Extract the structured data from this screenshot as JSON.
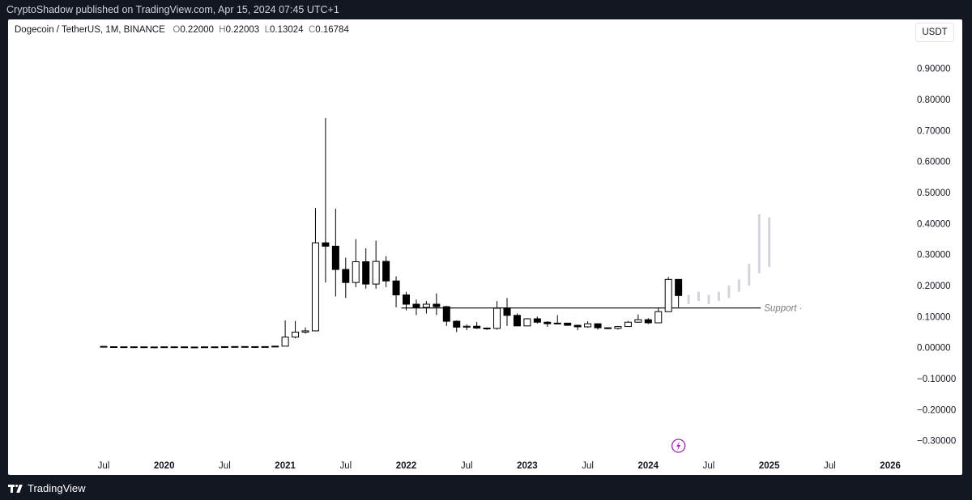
{
  "header": {
    "published_text": "CryptoShadow published on TradingView.com, Apr 15, 2024 07:45 UTC+1"
  },
  "legend": {
    "symbol": "Dogecoin / TetherUS, 1M, BINANCE",
    "open_label": "O",
    "open_value": "0.22000",
    "high_label": "H",
    "high_value": "0.22003",
    "low_label": "L",
    "low_value": "0.13024",
    "close_label": "C",
    "close_value": "0.16784"
  },
  "currency_button": "USDT",
  "footer": {
    "brand": "TradingView"
  },
  "colors": {
    "up_candle": "#ffffff",
    "down_candle": "#000000",
    "projection": "#d1d4dc",
    "support_line": "#131722",
    "event_icon": "#9c27b0"
  },
  "chart_data": {
    "type": "candlestick",
    "title": "",
    "ylim": [
      -0.34,
      0.98
    ],
    "y_ticks": [
      "0.90000",
      "0.80000",
      "0.70000",
      "0.60000",
      "0.50000",
      "0.40000",
      "0.30000",
      "0.20000",
      "0.10000",
      "0.00000",
      "−0.10000",
      "−0.20000",
      "−0.30000"
    ],
    "y_tick_values": [
      0.9,
      0.8,
      0.7,
      0.6,
      0.5,
      0.4,
      0.3,
      0.2,
      0.1,
      0.0,
      -0.1,
      -0.2,
      -0.3
    ],
    "x_ticks": [
      {
        "label": "Jul",
        "month": "2019-07",
        "bold": false
      },
      {
        "label": "2020",
        "month": "2020-01",
        "bold": true
      },
      {
        "label": "Jul",
        "month": "2020-07",
        "bold": false
      },
      {
        "label": "2021",
        "month": "2021-01",
        "bold": true
      },
      {
        "label": "Jul",
        "month": "2021-07",
        "bold": false
      },
      {
        "label": "2022",
        "month": "2022-01",
        "bold": true
      },
      {
        "label": "Jul",
        "month": "2022-07",
        "bold": false
      },
      {
        "label": "2023",
        "month": "2023-01",
        "bold": true
      },
      {
        "label": "Jul",
        "month": "2023-07",
        "bold": false
      },
      {
        "label": "2024",
        "month": "2024-01",
        "bold": true
      },
      {
        "label": "Jul",
        "month": "2024-07",
        "bold": false
      },
      {
        "label": "2025",
        "month": "2025-01",
        "bold": true
      },
      {
        "label": "Jul",
        "month": "2025-07",
        "bold": false
      },
      {
        "label": "2026",
        "month": "2026-01",
        "bold": true
      }
    ],
    "candles": [
      {
        "month": "2019-07",
        "o": 0.004,
        "h": 0.0045,
        "l": 0.003,
        "c": 0.003
      },
      {
        "month": "2019-08",
        "o": 0.003,
        "h": 0.0032,
        "l": 0.0025,
        "c": 0.0027
      },
      {
        "month": "2019-09",
        "o": 0.0027,
        "h": 0.0029,
        "l": 0.0022,
        "c": 0.0024
      },
      {
        "month": "2019-10",
        "o": 0.0024,
        "h": 0.003,
        "l": 0.0023,
        "c": 0.0026
      },
      {
        "month": "2019-11",
        "o": 0.0026,
        "h": 0.0028,
        "l": 0.0021,
        "c": 0.0022
      },
      {
        "month": "2019-12",
        "o": 0.0022,
        "h": 0.0024,
        "l": 0.0019,
        "c": 0.002
      },
      {
        "month": "2020-01",
        "o": 0.002,
        "h": 0.0028,
        "l": 0.002,
        "c": 0.0026
      },
      {
        "month": "2020-02",
        "o": 0.0026,
        "h": 0.0033,
        "l": 0.0024,
        "c": 0.0025
      },
      {
        "month": "2020-03",
        "o": 0.0025,
        "h": 0.0026,
        "l": 0.0014,
        "c": 0.0019
      },
      {
        "month": "2020-04",
        "o": 0.0019,
        "h": 0.0022,
        "l": 0.0017,
        "c": 0.002
      },
      {
        "month": "2020-05",
        "o": 0.002,
        "h": 0.0026,
        "l": 0.0019,
        "c": 0.0025
      },
      {
        "month": "2020-06",
        "o": 0.0025,
        "h": 0.0026,
        "l": 0.0022,
        "c": 0.0024
      },
      {
        "month": "2020-07",
        "o": 0.0024,
        "h": 0.0046,
        "l": 0.0023,
        "c": 0.0031
      },
      {
        "month": "2020-08",
        "o": 0.0031,
        "h": 0.004,
        "l": 0.0029,
        "c": 0.0035
      },
      {
        "month": "2020-09",
        "o": 0.0035,
        "h": 0.0036,
        "l": 0.003,
        "c": 0.0032
      },
      {
        "month": "2020-10",
        "o": 0.0032,
        "h": 0.0033,
        "l": 0.0025,
        "c": 0.0026
      },
      {
        "month": "2020-11",
        "o": 0.0026,
        "h": 0.0037,
        "l": 0.0024,
        "c": 0.0033
      },
      {
        "month": "2020-12",
        "o": 0.0033,
        "h": 0.006,
        "l": 0.003,
        "c": 0.0047
      },
      {
        "month": "2021-01",
        "o": 0.0047,
        "h": 0.088,
        "l": 0.005,
        "c": 0.034
      },
      {
        "month": "2021-02",
        "o": 0.034,
        "h": 0.086,
        "l": 0.03,
        "c": 0.05
      },
      {
        "month": "2021-03",
        "o": 0.05,
        "h": 0.065,
        "l": 0.045,
        "c": 0.054
      },
      {
        "month": "2021-04",
        "o": 0.054,
        "h": 0.45,
        "l": 0.053,
        "c": 0.338
      },
      {
        "month": "2021-05",
        "o": 0.338,
        "h": 0.74,
        "l": 0.21,
        "c": 0.327
      },
      {
        "month": "2021-06",
        "o": 0.327,
        "h": 0.448,
        "l": 0.165,
        "c": 0.252
      },
      {
        "month": "2021-07",
        "o": 0.252,
        "h": 0.29,
        "l": 0.16,
        "c": 0.21
      },
      {
        "month": "2021-08",
        "o": 0.21,
        "h": 0.35,
        "l": 0.195,
        "c": 0.277
      },
      {
        "month": "2021-09",
        "o": 0.277,
        "h": 0.32,
        "l": 0.19,
        "c": 0.205
      },
      {
        "month": "2021-10",
        "o": 0.205,
        "h": 0.345,
        "l": 0.19,
        "c": 0.278
      },
      {
        "month": "2021-11",
        "o": 0.278,
        "h": 0.295,
        "l": 0.195,
        "c": 0.215
      },
      {
        "month": "2021-12",
        "o": 0.215,
        "h": 0.23,
        "l": 0.13,
        "c": 0.17
      },
      {
        "month": "2022-01",
        "o": 0.17,
        "h": 0.18,
        "l": 0.12,
        "c": 0.14
      },
      {
        "month": "2022-02",
        "o": 0.14,
        "h": 0.155,
        "l": 0.105,
        "c": 0.13
      },
      {
        "month": "2022-03",
        "o": 0.13,
        "h": 0.15,
        "l": 0.11,
        "c": 0.14
      },
      {
        "month": "2022-04",
        "o": 0.14,
        "h": 0.175,
        "l": 0.105,
        "c": 0.132
      },
      {
        "month": "2022-05",
        "o": 0.132,
        "h": 0.135,
        "l": 0.07,
        "c": 0.085
      },
      {
        "month": "2022-06",
        "o": 0.085,
        "h": 0.088,
        "l": 0.05,
        "c": 0.066
      },
      {
        "month": "2022-07",
        "o": 0.066,
        "h": 0.075,
        "l": 0.056,
        "c": 0.069
      },
      {
        "month": "2022-08",
        "o": 0.069,
        "h": 0.083,
        "l": 0.06,
        "c": 0.063
      },
      {
        "month": "2022-09",
        "o": 0.063,
        "h": 0.065,
        "l": 0.057,
        "c": 0.062
      },
      {
        "month": "2022-10",
        "o": 0.062,
        "h": 0.15,
        "l": 0.058,
        "c": 0.127
      },
      {
        "month": "2022-11",
        "o": 0.127,
        "h": 0.16,
        "l": 0.07,
        "c": 0.104
      },
      {
        "month": "2022-12",
        "o": 0.104,
        "h": 0.11,
        "l": 0.07,
        "c": 0.07
      },
      {
        "month": "2023-01",
        "o": 0.07,
        "h": 0.095,
        "l": 0.07,
        "c": 0.093
      },
      {
        "month": "2023-02",
        "o": 0.093,
        "h": 0.1,
        "l": 0.078,
        "c": 0.082
      },
      {
        "month": "2023-03",
        "o": 0.082,
        "h": 0.085,
        "l": 0.067,
        "c": 0.077
      },
      {
        "month": "2023-04",
        "o": 0.077,
        "h": 0.105,
        "l": 0.076,
        "c": 0.079
      },
      {
        "month": "2023-05",
        "o": 0.079,
        "h": 0.08,
        "l": 0.07,
        "c": 0.072
      },
      {
        "month": "2023-06",
        "o": 0.072,
        "h": 0.074,
        "l": 0.056,
        "c": 0.067
      },
      {
        "month": "2023-07",
        "o": 0.067,
        "h": 0.085,
        "l": 0.064,
        "c": 0.077
      },
      {
        "month": "2023-08",
        "o": 0.077,
        "h": 0.078,
        "l": 0.058,
        "c": 0.064
      },
      {
        "month": "2023-09",
        "o": 0.064,
        "h": 0.065,
        "l": 0.059,
        "c": 0.062
      },
      {
        "month": "2023-10",
        "o": 0.062,
        "h": 0.07,
        "l": 0.058,
        "c": 0.068
      },
      {
        "month": "2023-11",
        "o": 0.068,
        "h": 0.086,
        "l": 0.067,
        "c": 0.082
      },
      {
        "month": "2023-12",
        "o": 0.082,
        "h": 0.107,
        "l": 0.08,
        "c": 0.09
      },
      {
        "month": "2024-01",
        "o": 0.09,
        "h": 0.095,
        "l": 0.076,
        "c": 0.08
      },
      {
        "month": "2024-02",
        "o": 0.08,
        "h": 0.13,
        "l": 0.079,
        "c": 0.116
      },
      {
        "month": "2024-03",
        "o": 0.116,
        "h": 0.228,
        "l": 0.116,
        "c": 0.22
      },
      {
        "month": "2024-04",
        "o": 0.22,
        "h": 0.22003,
        "l": 0.13024,
        "c": 0.16784
      }
    ],
    "projection": [
      {
        "month": "2024-05",
        "low": 0.14,
        "high": 0.17
      },
      {
        "month": "2024-06",
        "low": 0.15,
        "high": 0.18
      },
      {
        "month": "2024-07",
        "low": 0.14,
        "high": 0.17
      },
      {
        "month": "2024-08",
        "low": 0.15,
        "high": 0.18
      },
      {
        "month": "2024-09",
        "low": 0.16,
        "high": 0.2
      },
      {
        "month": "2024-10",
        "low": 0.18,
        "high": 0.22
      },
      {
        "month": "2024-11",
        "low": 0.2,
        "high": 0.27
      },
      {
        "month": "2024-12",
        "low": 0.24,
        "high": 0.43
      },
      {
        "month": "2025-01",
        "low": 0.26,
        "high": 0.42
      }
    ],
    "support": {
      "label": "Support",
      "value": 0.128,
      "start_month": "2022-01",
      "end_month": "2024-12"
    },
    "event_marker_month": "2024-04"
  }
}
